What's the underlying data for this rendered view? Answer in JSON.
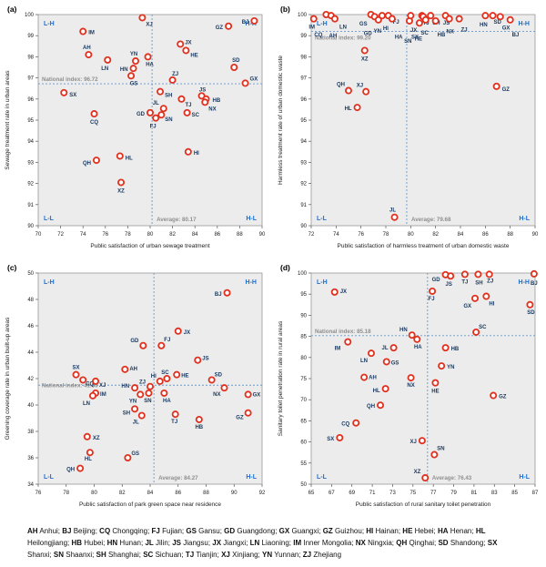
{
  "style": {
    "plot_bg": "#ececec",
    "border": "#999999",
    "marker_stroke": "#e0301e",
    "marker_fill": "#ffffff",
    "point_label": "#17375e",
    "quadrant": "#1d6fce",
    "dashed": "#6699cc",
    "annotation": "#8f8f8f",
    "tick": "#222222"
  },
  "legend": {
    "entries": [
      [
        "AH",
        "Anhui"
      ],
      [
        "BJ",
        "Beijing"
      ],
      [
        "CQ",
        "Chongqing"
      ],
      [
        "FJ",
        "Fujian"
      ],
      [
        "GS",
        "Gansu"
      ],
      [
        "GD",
        "Guangdong"
      ],
      [
        "GX",
        "Guangxi"
      ],
      [
        "GZ",
        "Guizhou"
      ],
      [
        "HI",
        "Hainan"
      ],
      [
        "HE",
        "Hebei"
      ],
      [
        "HA",
        "Henan"
      ],
      [
        "HL",
        "Heilongjiang"
      ],
      [
        "HB",
        "Hubei"
      ],
      [
        "HN",
        "Hunan"
      ],
      [
        "JL",
        "Jilin"
      ],
      [
        "JS",
        "Jiangsu"
      ],
      [
        "JX",
        "Jiangxi"
      ],
      [
        "LN",
        "Liaoning"
      ],
      [
        "IM",
        "Inner Mongolia"
      ],
      [
        "NX",
        "Ningxia"
      ],
      [
        "QH",
        "Qinghai"
      ],
      [
        "SD",
        "Shandong"
      ],
      [
        "SX",
        "Shanxi"
      ],
      [
        "SN",
        "Shaanxi"
      ],
      [
        "SH",
        "Shanghai"
      ],
      [
        "SC",
        "Sichuan"
      ],
      [
        "TJ",
        "Tianjin"
      ],
      [
        "XJ",
        "Xinjiang"
      ],
      [
        "YN",
        "Yunnan"
      ],
      [
        "ZJ",
        "Zhejiang"
      ]
    ]
  },
  "chart_data": [
    {
      "id": "a",
      "type": "scatter",
      "title": "(a)",
      "xlabel": "Public satisfaction of urban sewage treatment",
      "ylabel": "Sewage treatment rate in urban areas",
      "xlim": [
        70,
        90
      ],
      "xstep": 2,
      "ylim": [
        90,
        100
      ],
      "ystep": 1,
      "national_index": {
        "label": "National index:",
        "value": "96.72",
        "y": 96.72,
        "text_pos": "above"
      },
      "average": {
        "label": "Average:",
        "value": "80.17",
        "x": 80.17
      },
      "quadrants": {
        "tl": "L-H",
        "tr": "H-H",
        "bl": "L-L",
        "br": "H-L"
      },
      "points": [
        [
          "XJ",
          79.3,
          99.85,
          4,
          9,
          "s"
        ],
        [
          "BJ",
          89.3,
          99.7,
          -6,
          3,
          "e"
        ],
        [
          "GZ",
          87.0,
          99.45,
          -6,
          3,
          "e"
        ],
        [
          "IM",
          74.0,
          99.2,
          6,
          3,
          "s"
        ],
        [
          "JX",
          82.7,
          98.6,
          5,
          0,
          "s"
        ],
        [
          "HE",
          83.2,
          98.3,
          5,
          7,
          "s"
        ],
        [
          "AH",
          74.5,
          98.1,
          -2,
          -6,
          "m"
        ],
        [
          "HA",
          79.8,
          98.0,
          2,
          10,
          "m"
        ],
        [
          "LN",
          76.2,
          97.85,
          -3,
          11,
          "m"
        ],
        [
          "YN",
          78.7,
          97.8,
          -2,
          -6,
          "m"
        ],
        [
          "HN",
          78.5,
          97.45,
          -6,
          3,
          "e"
        ],
        [
          "SD",
          87.5,
          97.5,
          2,
          -6,
          "m"
        ],
        [
          "GS",
          78.3,
          97.1,
          3,
          10,
          "m"
        ],
        [
          "ZJ",
          82.0,
          96.9,
          3,
          -5,
          "m"
        ],
        [
          "GX",
          88.5,
          96.75,
          5,
          -3,
          "s"
        ],
        [
          "SX",
          72.3,
          96.3,
          6,
          4,
          "s"
        ],
        [
          "SH",
          80.9,
          96.35,
          5,
          6,
          "s"
        ],
        [
          "JS",
          84.6,
          96.15,
          1,
          -5,
          "m"
        ],
        [
          "HB",
          85.0,
          96.0,
          7,
          3,
          "s"
        ],
        [
          "TJ",
          82.8,
          96.0,
          4,
          8,
          "s"
        ],
        [
          "NX",
          84.9,
          95.85,
          4,
          9,
          "s"
        ],
        [
          "JL",
          81.2,
          95.55,
          -5,
          -4,
          "e"
        ],
        [
          "SC",
          83.3,
          95.35,
          5,
          4,
          "s"
        ],
        [
          "GD",
          80.0,
          95.35,
          -6,
          3,
          "e"
        ],
        [
          "SN",
          81.0,
          95.25,
          4,
          7,
          "s"
        ],
        [
          "CQ",
          75.0,
          95.3,
          0,
          11,
          "m"
        ],
        [
          "FJ",
          80.5,
          95.1,
          -3,
          11,
          "m"
        ],
        [
          "HI",
          83.4,
          93.5,
          6,
          3,
          "s"
        ],
        [
          "HL",
          77.3,
          93.3,
          6,
          4,
          "s"
        ],
        [
          "QH",
          75.2,
          93.1,
          -6,
          5,
          "e"
        ],
        [
          "XZ",
          77.4,
          92.05,
          0,
          11,
          "m"
        ]
      ]
    },
    {
      "id": "b",
      "type": "scatter",
      "title": "(b)",
      "xlabel": "Public satisfaction of harmless treatment of urban domestic waste",
      "ylabel": "Harmless treatment rate of urban domestic waste",
      "xlim": [
        72,
        90
      ],
      "xstep": 2,
      "ylim": [
        90,
        100
      ],
      "ystep": 1,
      "national_index": {
        "label": "National index:",
        "value": "99.20",
        "y": 99.2,
        "text_pos": "below"
      },
      "average": {
        "label": "Average:",
        "value": "79.68",
        "x": 79.68
      },
      "quadrants": {
        "tl": "L-H",
        "tr": "H-H",
        "bl": "L-L",
        "br": "H-L"
      },
      "points": [
        [
          "IM",
          72.2,
          99.8,
          -2,
          11,
          "m"
        ],
        [
          "CQ",
          73.2,
          100,
          -4,
          24,
          "e"
        ],
        [
          "AH",
          73.6,
          99.95,
          2,
          24,
          "m"
        ],
        [
          "LN",
          73.9,
          99.8,
          5,
          11,
          "s"
        ],
        [
          "GS",
          76.8,
          100,
          -4,
          12,
          "e"
        ],
        [
          "GD",
          77.1,
          99.9,
          -3,
          20,
          "e"
        ],
        [
          "YN",
          77.4,
          99.75,
          -1,
          14,
          "m"
        ],
        [
          "HI",
          77.7,
          99.95,
          1,
          16,
          "s"
        ],
        [
          "FJ",
          78.2,
          99.95,
          5,
          9,
          "s"
        ],
        [
          "HA",
          78.5,
          99.8,
          3,
          22,
          "s"
        ],
        [
          "XZ",
          76.3,
          98.3,
          0,
          11,
          "m"
        ],
        [
          "QH",
          75.0,
          96.4,
          -4,
          -5,
          "e"
        ],
        [
          "XJ",
          76.4,
          96.35,
          -3,
          -5,
          "e"
        ],
        [
          "HL",
          75.7,
          95.6,
          -6,
          3,
          "e"
        ],
        [
          "JX",
          79.9,
          99.7,
          1,
          12,
          "s"
        ],
        [
          "SN",
          80.0,
          99.95,
          -3,
          30,
          "m"
        ],
        [
          "HE",
          80.7,
          99.6,
          -1,
          19,
          "m"
        ],
        [
          "TJ",
          80.9,
          99.95,
          1,
          10,
          "s"
        ],
        [
          "SX",
          81.0,
          99.9,
          -5,
          24,
          "e"
        ],
        [
          "SH",
          81.6,
          99.95,
          2,
          10,
          "s"
        ],
        [
          "SC",
          81.2,
          99.75,
          -1,
          16,
          "m"
        ],
        [
          "HB",
          82.0,
          99.7,
          2,
          17,
          "s"
        ],
        [
          "JS",
          82.8,
          99.95,
          1,
          10,
          "m"
        ],
        [
          "NX",
          83.1,
          99.8,
          1,
          16,
          "m"
        ],
        [
          "ZJ",
          83.9,
          99.8,
          2,
          14,
          "s"
        ],
        [
          "HN",
          86.0,
          99.95,
          -2,
          12,
          "m"
        ],
        [
          "SD",
          86.6,
          99.95,
          1,
          9,
          "s"
        ],
        [
          "GX",
          87.2,
          99.9,
          2,
          14,
          "s"
        ],
        [
          "BJ",
          88.0,
          99.75,
          2,
          18,
          "s"
        ],
        [
          "GZ",
          86.9,
          96.6,
          6,
          5,
          "s"
        ],
        [
          "JL",
          78.7,
          90.4,
          -2,
          -6,
          "m"
        ]
      ]
    },
    {
      "id": "c",
      "type": "scatter",
      "title": "(c)",
      "xlabel": "Public satisfaction of park green space near residence",
      "ylabel": "Greening coverage rate in urban built-up areas",
      "xlim": [
        76,
        92
      ],
      "xstep": 2,
      "ylim": [
        34,
        50
      ],
      "ystep": 2,
      "national_index": {
        "label": "National index:",
        "value": "41.50",
        "y": 41.5,
        "text_pos": "on"
      },
      "average": {
        "label": "Average:",
        "value": "84.27",
        "x": 84.27
      },
      "quadrants": {
        "tl": "L-H",
        "tr": "H-H",
        "bl": "L-L",
        "br": "H-L"
      },
      "points": [
        [
          "BJ",
          89.5,
          48.5,
          -6,
          3,
          "e"
        ],
        [
          "JX",
          86.0,
          45.6,
          6,
          3,
          "s"
        ],
        [
          "GD",
          83.5,
          44.5,
          -5,
          -4,
          "e"
        ],
        [
          "FJ",
          84.8,
          44.5,
          3,
          -5,
          "s"
        ],
        [
          "JS",
          87.4,
          43.4,
          5,
          0,
          "s"
        ],
        [
          "AH",
          82.2,
          42.7,
          5,
          1,
          "s"
        ],
        [
          "SX",
          78.7,
          42.3,
          0,
          -6,
          "m"
        ],
        [
          "HE",
          85.9,
          42.3,
          5,
          3,
          "s"
        ],
        [
          "SC",
          85.2,
          42.0,
          -2,
          -5,
          "m"
        ],
        [
          "CQ",
          79.2,
          41.9,
          3,
          6,
          "s"
        ],
        [
          "XJ",
          80.1,
          41.8,
          4,
          6,
          "s"
        ],
        [
          "SD",
          88.4,
          41.9,
          3,
          -4,
          "s"
        ],
        [
          "HI",
          84.7,
          41.8,
          -4,
          -4,
          "e"
        ],
        [
          "ZJ",
          84.0,
          41.4,
          -5,
          -3,
          "e"
        ],
        [
          "HN",
          82.9,
          41.3,
          -6,
          0,
          "e"
        ],
        [
          "NX",
          89.3,
          41.3,
          -4,
          9,
          "e"
        ],
        [
          "IM",
          80.1,
          40.9,
          5,
          3,
          "s"
        ],
        [
          "LN",
          79.9,
          40.7,
          -3,
          10,
          "e"
        ],
        [
          "SN",
          83.9,
          40.9,
          -1,
          10,
          "m"
        ],
        [
          "YN",
          83.3,
          40.8,
          -4,
          9,
          "e"
        ],
        [
          "HA",
          85.0,
          40.9,
          3,
          10,
          "m"
        ],
        [
          "GX",
          91.0,
          40.8,
          5,
          2,
          "s"
        ],
        [
          "SH",
          82.9,
          39.7,
          -5,
          6,
          "e"
        ],
        [
          "GZ",
          91.0,
          39.4,
          -5,
          7,
          "e"
        ],
        [
          "JL",
          83.4,
          39.2,
          -3,
          9,
          "e"
        ],
        [
          "TJ",
          85.8,
          39.3,
          -1,
          10,
          "m"
        ],
        [
          "HB",
          87.5,
          38.9,
          0,
          10,
          "m"
        ],
        [
          "XZ",
          79.5,
          37.6,
          6,
          3,
          "s"
        ],
        [
          "HL",
          79.7,
          36.4,
          -2,
          9,
          "m"
        ],
        [
          "GS",
          82.4,
          36.0,
          4,
          -3,
          "s"
        ],
        [
          "QH",
          79.0,
          35.2,
          -6,
          3,
          "e"
        ]
      ]
    },
    {
      "id": "d",
      "type": "scatter",
      "title": "(d)",
      "xlabel": "Public satisfaction of rural sanitary toilet penetration",
      "ylabel": "Sanitary toilet penetration rate in rural areas",
      "xlim": [
        65,
        87
      ],
      "xstep": 2,
      "ylim": [
        50,
        100
      ],
      "ystep": 5,
      "national_index": {
        "label": "National index:",
        "value": "85.18",
        "y": 85.18,
        "text_pos": "above"
      },
      "average": {
        "label": "Average:",
        "value": "76.43",
        "x": 76.43
      },
      "quadrants": {
        "tl": "L-H",
        "tr": "H-H",
        "bl": "L-L",
        "br": "H-L"
      },
      "points": [
        [
          "JX",
          67.3,
          95.5,
          6,
          1,
          "s"
        ],
        [
          "GD",
          78.2,
          99.6,
          -6,
          7,
          "e"
        ],
        [
          "JS",
          78.7,
          99.3,
          -2,
          11,
          "m"
        ],
        [
          "TJ",
          80.1,
          99.7,
          0,
          10,
          "m"
        ],
        [
          "SH",
          81.4,
          99.7,
          1,
          11,
          "m"
        ],
        [
          "ZJ",
          82.5,
          99.7,
          1,
          9,
          "m"
        ],
        [
          "BJ",
          86.9,
          99.8,
          0,
          12,
          "m"
        ],
        [
          "FJ",
          76.9,
          95.7,
          -1,
          10,
          "m"
        ],
        [
          "GX",
          81.1,
          94.0,
          -4,
          10,
          "e"
        ],
        [
          "HI",
          82.2,
          94.5,
          3,
          10,
          "s"
        ],
        [
          "SD",
          86.5,
          92.5,
          1,
          10,
          "m"
        ],
        [
          "SC",
          81.2,
          86.0,
          3,
          -4,
          "s"
        ],
        [
          "HN",
          74.9,
          85.3,
          -5,
          -4,
          "e"
        ],
        [
          "HA",
          75.4,
          84.3,
          1,
          10,
          "m"
        ],
        [
          "IM",
          68.6,
          83.7,
          -8,
          9,
          "e"
        ],
        [
          "JL",
          73.1,
          82.3,
          -6,
          2,
          "e"
        ],
        [
          "LN",
          70.9,
          81.0,
          -4,
          10,
          "e"
        ],
        [
          "HB",
          78.2,
          82.3,
          6,
          3,
          "s"
        ],
        [
          "GS",
          72.4,
          79.0,
          5,
          3,
          "s"
        ],
        [
          "YN",
          77.8,
          78.0,
          6,
          3,
          "s"
        ],
        [
          "AH",
          70.2,
          75.3,
          5,
          2,
          "s"
        ],
        [
          "NX",
          74.8,
          75.2,
          0,
          10,
          "m"
        ],
        [
          "HE",
          77.2,
          74.0,
          0,
          11,
          "m"
        ],
        [
          "HL",
          72.3,
          72.6,
          -6,
          4,
          "e"
        ],
        [
          "GZ",
          82.9,
          71.0,
          6,
          3,
          "s"
        ],
        [
          "QH",
          71.8,
          68.7,
          -6,
          3,
          "e"
        ],
        [
          "CQ",
          69.4,
          64.5,
          -7,
          3,
          "e"
        ],
        [
          "SX",
          67.8,
          61.0,
          -6,
          3,
          "e"
        ],
        [
          "XJ",
          75.9,
          60.3,
          -6,
          3,
          "e"
        ],
        [
          "SN",
          77.1,
          57.0,
          3,
          -5,
          "s"
        ],
        [
          "XZ",
          76.2,
          51.5,
          -5,
          -5,
          "e"
        ]
      ]
    }
  ]
}
